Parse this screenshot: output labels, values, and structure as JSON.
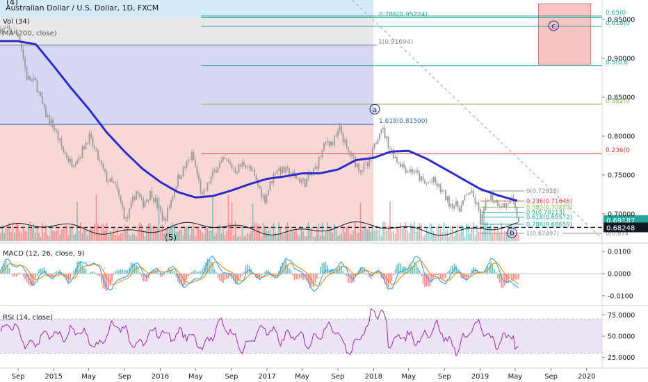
{
  "header": {
    "title": "Australian Dollar / U.S. Dollar, 1D, FXCM",
    "volume_label": "Vol (34)",
    "ma_label": "MA (200, close)",
    "wave4_label": "(4)",
    "wave5_label": "(5)"
  },
  "colors": {
    "up": "#26a69a",
    "down": "#ef5350",
    "ma": "#2b2bcc",
    "zone_blue": "#d6d6f5",
    "zone_red": "#f8d7d7",
    "zone_grey": "#e8e8e8",
    "zone_cyan": "#d3ecf5",
    "macd": "#2196f3",
    "signal": "#f57c00",
    "rsi": "#9c27b0",
    "rsi_band": "#ece3f5"
  },
  "wave_labels": [
    {
      "label": "a",
      "date": "2018-01-05",
      "price": 0.8345
    },
    {
      "label": "b",
      "date": "2019-04-20",
      "price": 0.6755
    },
    {
      "label": "c",
      "date": "2019-09-10",
      "price": 0.942
    }
  ],
  "fib_upper": {
    "levels": [
      {
        "ratio_label": "0.786(0.95224)",
        "price": 0.95224,
        "color": "#26a69a"
      },
      {
        "ratio_label": "1(0.91694)",
        "price": 0.91694,
        "color": "#888888"
      },
      {
        "ratio_label": "1.618(0.81500)",
        "price": 0.815,
        "color": "#2b6cb0"
      },
      {
        "ratio_label": "0.236(0",
        "price": 0.7775,
        "color": "#e53935"
      },
      {
        "ratio_label": "0.382(0",
        "price": 0.841,
        "color": "#8bc34a"
      },
      {
        "ratio_label": "0.5(0.8",
        "price": 0.8905,
        "color": "#26a69a"
      },
      {
        "ratio_label": "0.618(0",
        "price": 0.941,
        "color": "#26a69a"
      },
      {
        "ratio_label": "0.65(0",
        "price": 0.9545,
        "color": "#26a69a"
      }
    ]
  },
  "fib_lower": {
    "levels": [
      {
        "ratio_label": "0(0.72928)",
        "price": 0.72928,
        "color": "#888888"
      },
      {
        "ratio_label": "0.236(0.71646)",
        "price": 0.71646,
        "color": "#e53935"
      },
      {
        "ratio_label": "0.382(0.70853)",
        "price": 0.70853,
        "color": "#8bc34a"
      },
      {
        "ratio_label": "0.5(0.70213)",
        "price": 0.70213,
        "color": "#26a69a"
      },
      {
        "ratio_label": "0.618(0.69572)",
        "price": 0.69572,
        "color": "#26a69a"
      },
      {
        "ratio_label": "0.786(0.68659)",
        "price": 0.68659,
        "color": "#26a69a"
      },
      {
        "ratio_label": "1(0.67497)",
        "price": 0.67497,
        "color": "#888888"
      },
      {
        "ratio_label": "0(0.674",
        "price": 0.6749,
        "color": "#888888"
      }
    ]
  },
  "price_tags": [
    {
      "value": "0.69187",
      "price": 0.69187,
      "color": "#26a69a"
    },
    {
      "value": "0.68248",
      "price": 0.68248,
      "color": "#131722"
    }
  ],
  "x_axis": {
    "ticks": [
      {
        "label": "Sep",
        "date": "2014-09-01"
      },
      {
        "label": "2015",
        "date": "2015-01-01"
      },
      {
        "label": "May",
        "date": "2015-05-01"
      },
      {
        "label": "Sep",
        "date": "2015-09-01"
      },
      {
        "label": "2016",
        "date": "2016-01-01"
      },
      {
        "label": "May",
        "date": "2016-05-01"
      },
      {
        "label": "Sep",
        "date": "2016-09-01"
      },
      {
        "label": "2017",
        "date": "2017-01-01"
      },
      {
        "label": "May",
        "date": "2017-05-01"
      },
      {
        "label": "Sep",
        "date": "2017-09-01"
      },
      {
        "label": "2018",
        "date": "2018-01-01"
      },
      {
        "label": "May",
        "date": "2018-05-01"
      },
      {
        "label": "Sep",
        "date": "2018-09-01"
      },
      {
        "label": "2019",
        "date": "2019-01-01"
      },
      {
        "label": "May",
        "date": "2019-05-01"
      },
      {
        "label": "Sep",
        "date": "2019-09-01"
      },
      {
        "label": "2020",
        "date": "2020-01-01"
      }
    ]
  },
  "chart_data": [
    {
      "type": "line",
      "title": "Australian Dollar / U.S. Dollar, 1D, FXCM",
      "name": "price",
      "ylim": [
        0.665,
        0.975
      ],
      "y_ticks": [
        {
          "label": "0.95000",
          "value": 0.95
        },
        {
          "label": "0.90000",
          "value": 0.9
        },
        {
          "label": "0.85000",
          "value": 0.85
        },
        {
          "label": "0.80000",
          "value": 0.8
        },
        {
          "label": "0.75000",
          "value": 0.75
        },
        {
          "label": "0.70000",
          "value": 0.7
        }
      ],
      "close_anchors": [
        [
          "2014-07-01",
          0.938
        ],
        [
          "2014-08-15",
          0.934
        ],
        [
          "2014-09-05",
          0.93
        ],
        [
          "2014-10-01",
          0.875
        ],
        [
          "2014-11-01",
          0.868
        ],
        [
          "2014-12-01",
          0.83
        ],
        [
          "2015-01-01",
          0.812
        ],
        [
          "2015-02-01",
          0.782
        ],
        [
          "2015-03-01",
          0.765
        ],
        [
          "2015-04-01",
          0.775
        ],
        [
          "2015-05-01",
          0.8
        ],
        [
          "2015-06-01",
          0.772
        ],
        [
          "2015-07-01",
          0.745
        ],
        [
          "2015-08-01",
          0.735
        ],
        [
          "2015-09-07",
          0.69
        ],
        [
          "2015-10-10",
          0.73
        ],
        [
          "2015-11-01",
          0.712
        ],
        [
          "2015-12-01",
          0.728
        ],
        [
          "2016-01-15",
          0.69
        ],
        [
          "2016-02-01",
          0.71
        ],
        [
          "2016-03-01",
          0.745
        ],
        [
          "2016-04-20",
          0.776
        ],
        [
          "2016-05-25",
          0.72
        ],
        [
          "2016-06-15",
          0.74
        ],
        [
          "2016-07-15",
          0.762
        ],
        [
          "2016-08-10",
          0.768
        ],
        [
          "2016-09-15",
          0.756
        ],
        [
          "2016-10-15",
          0.766
        ],
        [
          "2016-11-10",
          0.754
        ],
        [
          "2016-12-23",
          0.718
        ],
        [
          "2017-01-31",
          0.758
        ],
        [
          "2017-03-10",
          0.754
        ],
        [
          "2017-05-10",
          0.74
        ],
        [
          "2017-06-15",
          0.758
        ],
        [
          "2017-07-25",
          0.795
        ],
        [
          "2017-08-15",
          0.79
        ],
        [
          "2017-09-08",
          0.81
        ],
        [
          "2017-10-01",
          0.782
        ],
        [
          "2017-11-15",
          0.758
        ],
        [
          "2017-12-15",
          0.762
        ],
        [
          "2018-01-26",
          0.814
        ],
        [
          "2018-02-20",
          0.79
        ],
        [
          "2018-03-20",
          0.77
        ],
        [
          "2018-04-25",
          0.757
        ],
        [
          "2018-05-20",
          0.755
        ],
        [
          "2018-06-25",
          0.738
        ],
        [
          "2018-07-25",
          0.742
        ],
        [
          "2018-08-25",
          0.728
        ],
        [
          "2018-09-15",
          0.715
        ],
        [
          "2018-10-25",
          0.708
        ],
        [
          "2018-11-25",
          0.73
        ],
        [
          "2018-12-20",
          0.712
        ],
        [
          "2019-01-03",
          0.69
        ],
        [
          "2019-01-31",
          0.724
        ],
        [
          "2019-02-25",
          0.716
        ],
        [
          "2019-03-25",
          0.71
        ],
        [
          "2019-04-17",
          0.719
        ],
        [
          "2019-05-17",
          0.688
        ]
      ],
      "ma200_anchors": [
        [
          "2014-07-01",
          0.922
        ],
        [
          "2014-09-01",
          0.922
        ],
        [
          "2014-11-01",
          0.918
        ],
        [
          "2015-01-01",
          0.89
        ],
        [
          "2015-03-01",
          0.862
        ],
        [
          "2015-05-01",
          0.835
        ],
        [
          "2015-07-01",
          0.805
        ],
        [
          "2015-09-01",
          0.78
        ],
        [
          "2015-11-01",
          0.758
        ],
        [
          "2016-01-01",
          0.741
        ],
        [
          "2016-03-01",
          0.728
        ],
        [
          "2016-05-01",
          0.721
        ],
        [
          "2016-07-01",
          0.723
        ],
        [
          "2016-09-01",
          0.73
        ],
        [
          "2016-11-01",
          0.738
        ],
        [
          "2017-01-01",
          0.745
        ],
        [
          "2017-03-01",
          0.748
        ],
        [
          "2017-05-01",
          0.752
        ],
        [
          "2017-07-01",
          0.752
        ],
        [
          "2017-09-01",
          0.757
        ],
        [
          "2017-11-01",
          0.769
        ],
        [
          "2018-01-01",
          0.772
        ],
        [
          "2018-03-01",
          0.78
        ],
        [
          "2018-05-01",
          0.781
        ],
        [
          "2018-07-01",
          0.771
        ],
        [
          "2018-09-01",
          0.758
        ],
        [
          "2018-11-01",
          0.745
        ],
        [
          "2019-01-01",
          0.732
        ],
        [
          "2019-03-01",
          0.724
        ],
        [
          "2019-05-15",
          0.716
        ]
      ]
    },
    {
      "type": "line",
      "title": "MACD (12, 26, close, 9)",
      "name": "macd",
      "ylim": [
        -0.0135,
        0.0135
      ],
      "y_ticks": [
        {
          "label": "0.0100",
          "value": 0.01
        },
        {
          "label": "0.0000",
          "value": 0.0
        },
        {
          "label": "-0.0100",
          "value": -0.01
        }
      ]
    },
    {
      "type": "line",
      "title": "RSI (14, close)",
      "name": "rsi",
      "ylim": [
        15,
        85
      ],
      "band": [
        30,
        70
      ],
      "y_ticks": [
        {
          "label": "75.0000",
          "value": 75
        },
        {
          "label": "50.0000",
          "value": 50
        },
        {
          "label": "25.0000",
          "value": 25
        }
      ]
    }
  ]
}
